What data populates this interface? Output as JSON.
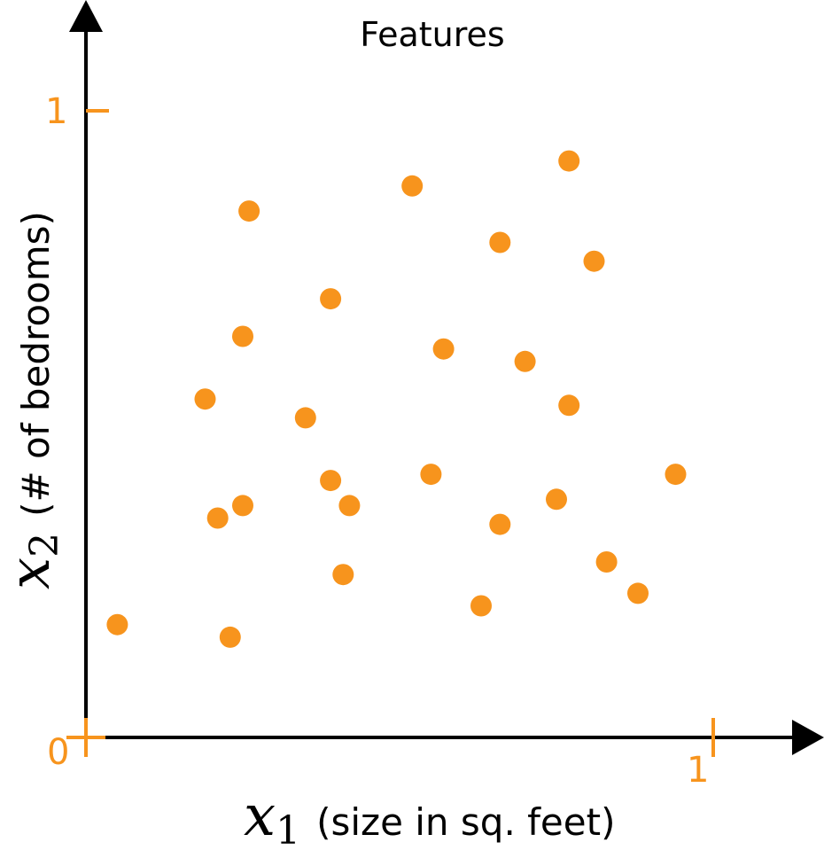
{
  "chart_data": {
    "type": "scatter",
    "title": "Features",
    "xlabel": {
      "var": "x",
      "sub": "1",
      "desc": "(size in sq. feet)"
    },
    "ylabel": {
      "var": "x",
      "sub": "2",
      "desc": "(# of bedrooms)"
    },
    "xlim": [
      0,
      1
    ],
    "ylim": [
      0,
      1
    ],
    "x_ticks": [
      "0",
      "1"
    ],
    "y_ticks": [
      "0",
      "1"
    ],
    "grid": false,
    "colors": {
      "points": "#F7941D",
      "ticks": "#F7941D",
      "axes": "#000000"
    },
    "points": [
      {
        "x": 0.05,
        "y": 0.18
      },
      {
        "x": 0.23,
        "y": 0.16
      },
      {
        "x": 0.26,
        "y": 0.84
      },
      {
        "x": 0.25,
        "y": 0.64
      },
      {
        "x": 0.19,
        "y": 0.54
      },
      {
        "x": 0.25,
        "y": 0.37
      },
      {
        "x": 0.21,
        "y": 0.35
      },
      {
        "x": 0.39,
        "y": 0.7
      },
      {
        "x": 0.35,
        "y": 0.51
      },
      {
        "x": 0.39,
        "y": 0.41
      },
      {
        "x": 0.42,
        "y": 0.37
      },
      {
        "x": 0.41,
        "y": 0.26
      },
      {
        "x": 0.52,
        "y": 0.88
      },
      {
        "x": 0.57,
        "y": 0.62
      },
      {
        "x": 0.55,
        "y": 0.42
      },
      {
        "x": 0.66,
        "y": 0.79
      },
      {
        "x": 0.7,
        "y": 0.6
      },
      {
        "x": 0.66,
        "y": 0.34
      },
      {
        "x": 0.63,
        "y": 0.21
      },
      {
        "x": 0.77,
        "y": 0.92
      },
      {
        "x": 0.81,
        "y": 0.76
      },
      {
        "x": 0.77,
        "y": 0.53
      },
      {
        "x": 0.75,
        "y": 0.38
      },
      {
        "x": 0.83,
        "y": 0.28
      },
      {
        "x": 0.88,
        "y": 0.23
      },
      {
        "x": 0.94,
        "y": 0.42
      }
    ]
  }
}
